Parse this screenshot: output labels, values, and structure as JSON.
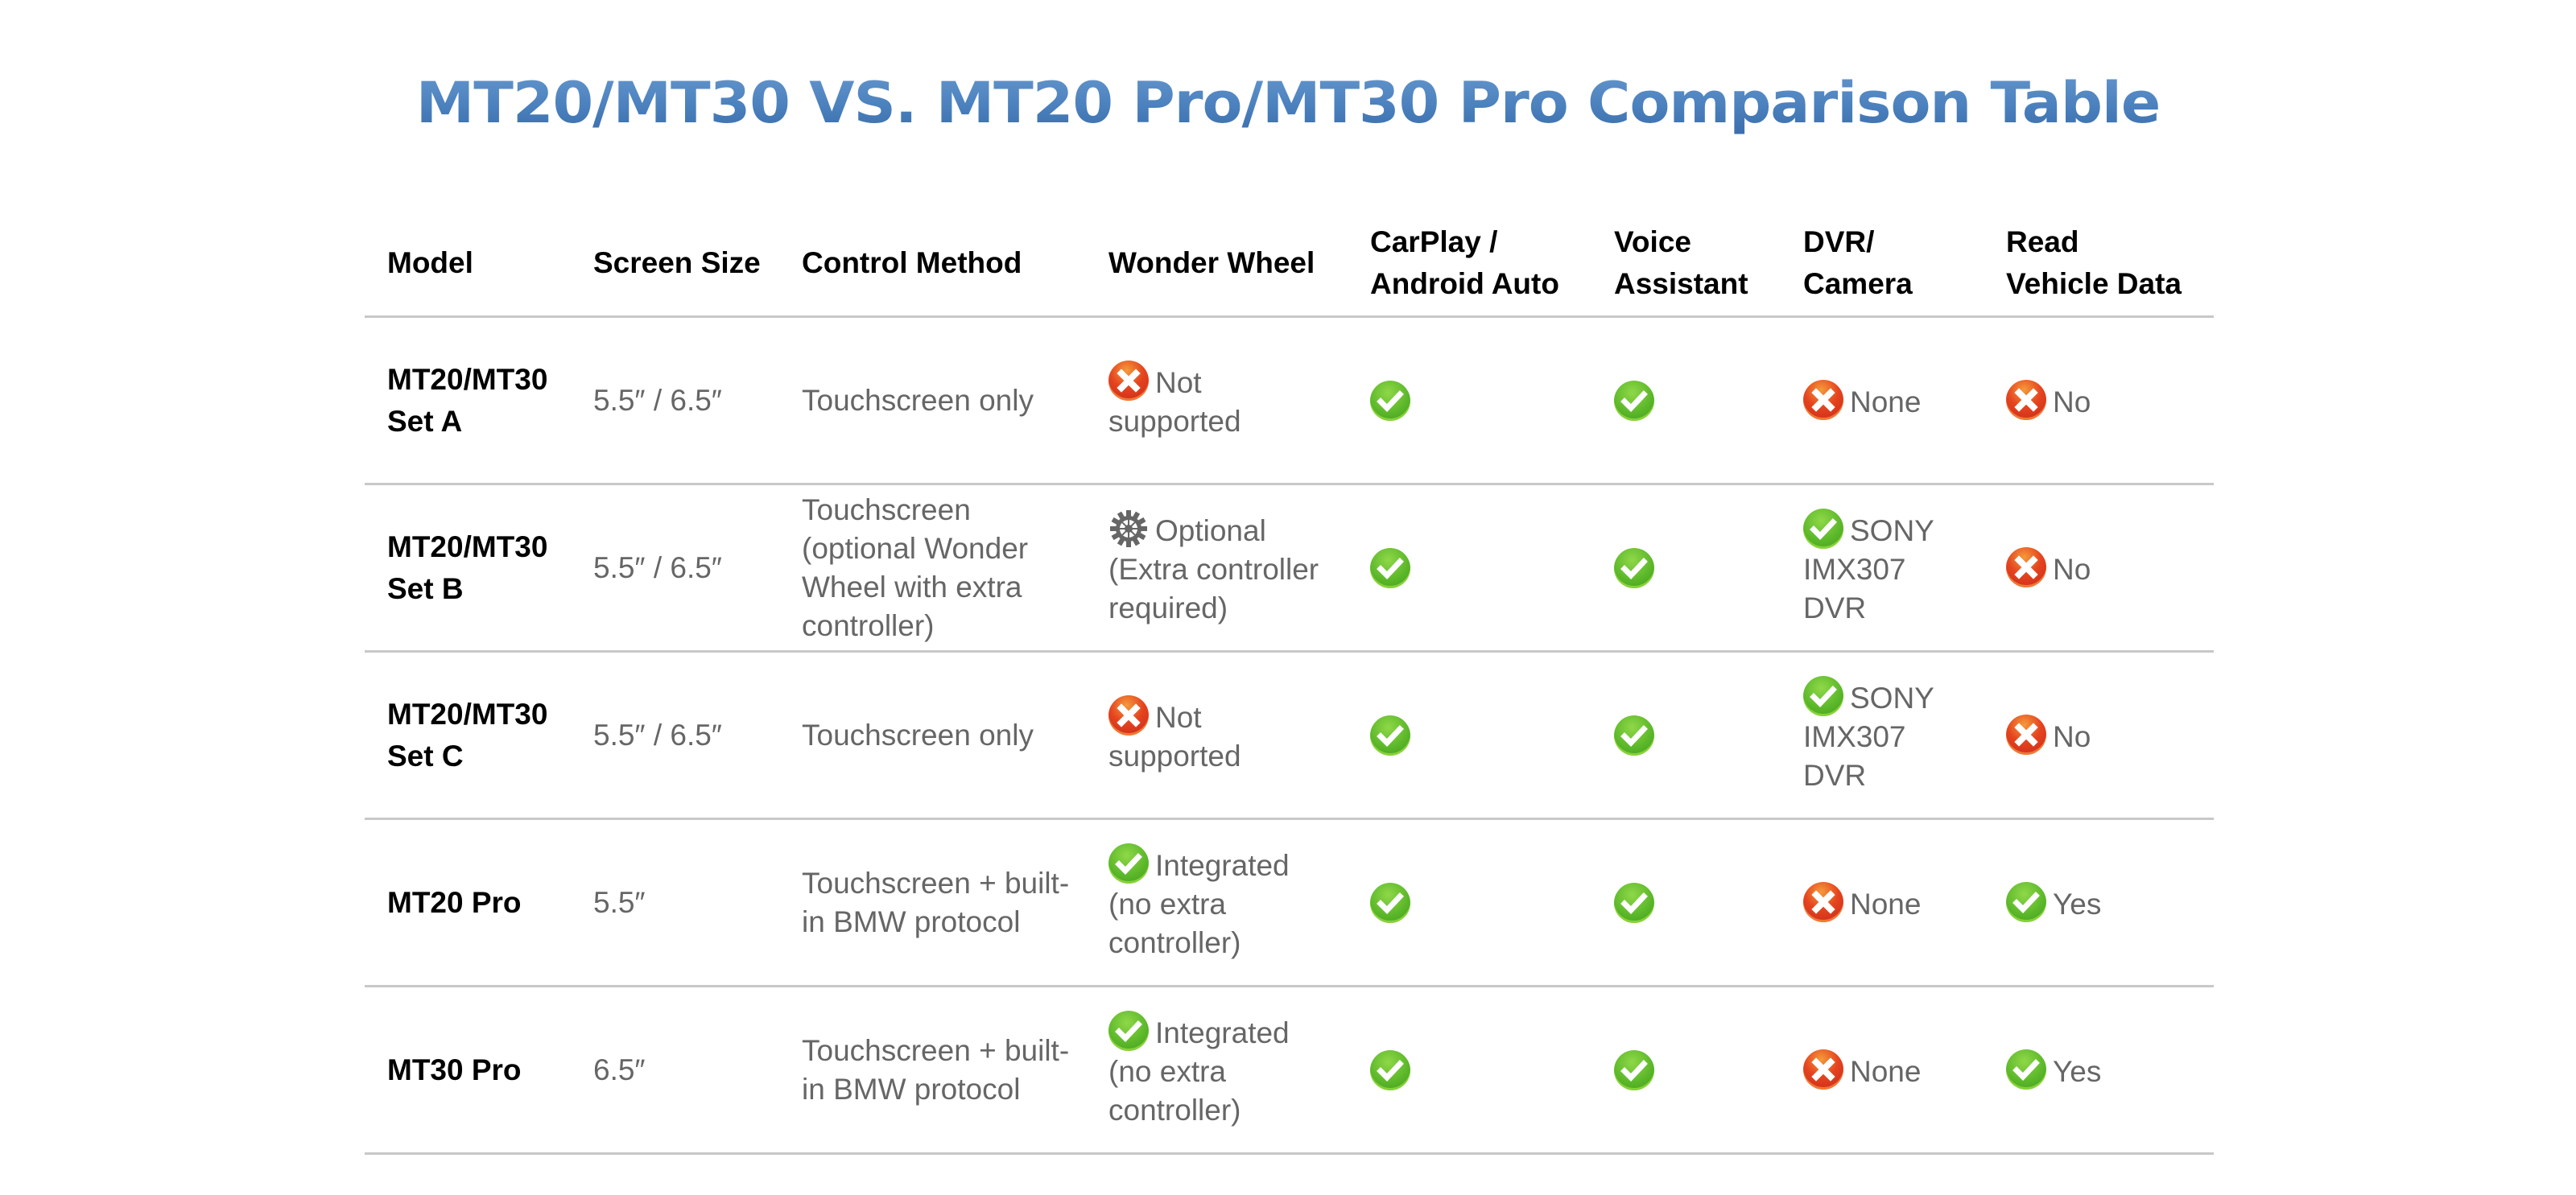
{
  "title": "MT20/MT30 VS. MT20 Pro/MT30 Pro Comparison Table",
  "colors": {
    "title_blue": "#4a80bd",
    "check_green": "#5cb82a",
    "cross_red": "#e5441f",
    "body_text": "#666666",
    "divider": "#c8c8c8"
  },
  "table": {
    "headers": [
      {
        "line1": "Model",
        "line2": ""
      },
      {
        "line1": "Screen Size",
        "line2": ""
      },
      {
        "line1": "Control Method",
        "line2": ""
      },
      {
        "line1": "Wonder Wheel",
        "line2": ""
      },
      {
        "line1": "CarPlay /",
        "line2": "Android Auto"
      },
      {
        "line1": "Voice",
        "line2": "Assistant"
      },
      {
        "line1": "DVR/",
        "line2": "Camera"
      },
      {
        "line1": "Read",
        "line2": "Vehicle Data"
      }
    ],
    "rows": [
      {
        "model_line1": "MT20/MT30",
        "model_line2": "Set A",
        "screen_size": "5.5″ / 6.5″",
        "control_method": "Touchscreen only",
        "wonder_wheel": {
          "icon": "cross-icon",
          "text": "Not supported"
        },
        "carplay": {
          "icon": "check-icon",
          "text": ""
        },
        "voice": {
          "icon": "check-icon",
          "text": ""
        },
        "dvr": {
          "icon": "cross-icon",
          "text": "None"
        },
        "vehicle_data": {
          "icon": "cross-icon",
          "text": "No"
        }
      },
      {
        "model_line1": "MT20/MT30",
        "model_line2": "Set B",
        "screen_size": "5.5″ / 6.5″",
        "control_method": "Touchscreen (optional Wonder Wheel with extra controller)",
        "wonder_wheel": {
          "icon": "gear-icon",
          "text": "Optional (Extra controller required)"
        },
        "carplay": {
          "icon": "check-icon",
          "text": ""
        },
        "voice": {
          "icon": "check-icon",
          "text": ""
        },
        "dvr": {
          "icon": "check-icon",
          "text": "SONY IMX307 DVR"
        },
        "vehicle_data": {
          "icon": "cross-icon",
          "text": "No"
        }
      },
      {
        "model_line1": "MT20/MT30",
        "model_line2": "Set C",
        "screen_size": "5.5″ / 6.5″",
        "control_method": "Touchscreen only",
        "wonder_wheel": {
          "icon": "cross-icon",
          "text": "Not supported"
        },
        "carplay": {
          "icon": "check-icon",
          "text": ""
        },
        "voice": {
          "icon": "check-icon",
          "text": ""
        },
        "dvr": {
          "icon": "check-icon",
          "text": "SONY IMX307 DVR"
        },
        "vehicle_data": {
          "icon": "cross-icon",
          "text": "No"
        }
      },
      {
        "model_line1": "MT20 Pro",
        "model_line2": "",
        "screen_size": "5.5″",
        "control_method": "Touchscreen + built-in BMW protocol",
        "wonder_wheel": {
          "icon": "check-icon",
          "text": "Integrated (no extra controller)"
        },
        "carplay": {
          "icon": "check-icon",
          "text": ""
        },
        "voice": {
          "icon": "check-icon",
          "text": ""
        },
        "dvr": {
          "icon": "cross-icon",
          "text": "None"
        },
        "vehicle_data": {
          "icon": "check-icon",
          "text": "Yes"
        }
      },
      {
        "model_line1": "MT30 Pro",
        "model_line2": "",
        "screen_size": "6.5″",
        "control_method": "Touchscreen + built-in BMW protocol",
        "wonder_wheel": {
          "icon": "check-icon",
          "text": "Integrated (no extra controller)"
        },
        "carplay": {
          "icon": "check-icon",
          "text": ""
        },
        "voice": {
          "icon": "check-icon",
          "text": ""
        },
        "dvr": {
          "icon": "cross-icon",
          "text": "None"
        },
        "vehicle_data": {
          "icon": "check-icon",
          "text": "Yes"
        }
      }
    ]
  }
}
